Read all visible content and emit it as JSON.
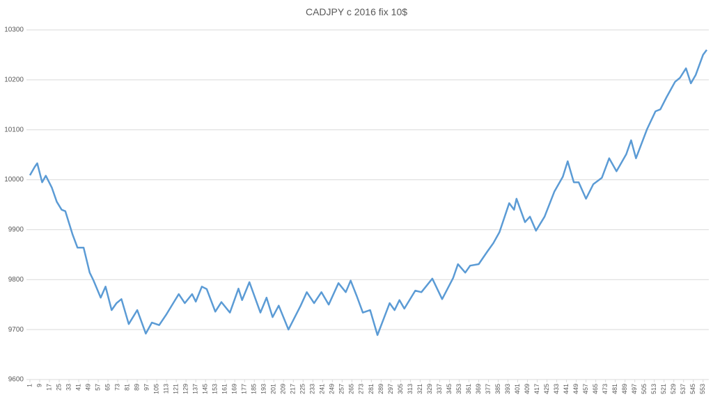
{
  "chart_data": {
    "type": "line",
    "title": "CADJPY c 2016 fix 10$",
    "x": [
      1,
      5,
      7,
      11,
      14,
      19,
      23,
      27,
      30,
      36,
      40,
      45,
      50,
      53,
      59,
      63,
      68,
      72,
      76,
      82,
      89,
      96,
      101,
      107,
      113,
      123,
      128,
      134,
      137,
      142,
      146,
      153,
      158,
      165,
      172,
      175,
      181,
      190,
      195,
      200,
      205,
      213,
      223,
      228,
      234,
      240,
      246,
      254,
      260,
      264,
      269,
      274,
      280,
      286,
      296,
      300,
      304,
      308,
      317,
      322,
      331,
      339,
      348,
      352,
      358,
      362,
      369,
      376,
      381,
      386,
      394,
      398,
      400,
      407,
      411,
      416,
      423,
      431,
      438,
      442,
      447,
      451,
      457,
      463,
      470,
      476,
      482,
      490,
      494,
      498,
      507,
      514,
      518,
      523,
      530,
      534,
      539,
      543,
      547,
      553,
      556
    ],
    "values": [
      10009,
      10026,
      10033,
      9995,
      10008,
      9984,
      9956,
      9940,
      9937,
      9890,
      9864,
      9864,
      9814,
      9799,
      9764,
      9786,
      9739,
      9753,
      9761,
      9711,
      9739,
      9692,
      9714,
      9709,
      9731,
      9771,
      9753,
      9771,
      9756,
      9786,
      9781,
      9736,
      9755,
      9734,
      9782,
      9759,
      9795,
      9734,
      9764,
      9725,
      9748,
      9700,
      9748,
      9775,
      9753,
      9775,
      9750,
      9793,
      9775,
      9798,
      9767,
      9734,
      9739,
      9689,
      9753,
      9739,
      9759,
      9742,
      9778,
      9775,
      9802,
      9761,
      9803,
      9831,
      9814,
      9828,
      9831,
      9856,
      9873,
      9895,
      9953,
      9940,
      9962,
      9915,
      9926,
      9898,
      9926,
      9976,
      10006,
      10037,
      9995,
      9995,
      9962,
      9991,
      10004,
      10043,
      10017,
      10051,
      10079,
      10043,
      10101,
      10137,
      10141,
      10165,
      10196,
      10204,
      10223,
      10193,
      10210,
      10250,
      10260
    ],
    "color": "#5b9bd5",
    "xlim": [
      1,
      556
    ],
    "xticks": [
      1,
      9,
      17,
      25,
      33,
      41,
      49,
      57,
      65,
      73,
      81,
      89,
      97,
      105,
      113,
      121,
      129,
      137,
      145,
      153,
      161,
      169,
      177,
      185,
      193,
      201,
      209,
      217,
      225,
      233,
      241,
      249,
      257,
      265,
      273,
      281,
      289,
      297,
      305,
      313,
      321,
      329,
      337,
      345,
      353,
      361,
      369,
      377,
      385,
      393,
      401,
      409,
      417,
      425,
      433,
      441,
      449,
      457,
      465,
      473,
      481,
      489,
      497,
      505,
      513,
      521,
      529,
      537,
      545,
      553
    ],
    "ylim": [
      9600,
      10300
    ],
    "yticks": [
      9600,
      9700,
      9800,
      9900,
      10000,
      10100,
      10200,
      10300
    ],
    "grid": true
  }
}
